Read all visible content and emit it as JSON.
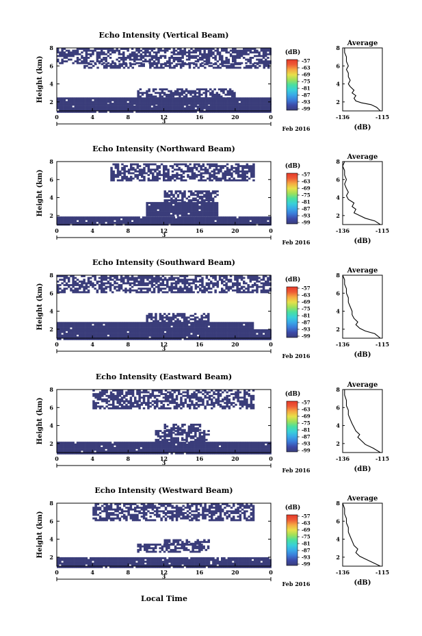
{
  "colors": {
    "echo": "#3a3d7a",
    "colorbar": [
      "#3a3d7a",
      "#3c4aa8",
      "#3b7bd8",
      "#39a9e8",
      "#39d0d8",
      "#49dfa0",
      "#9fe05a",
      "#e8e04a",
      "#f5a842",
      "#ee5a36",
      "#e43a2a"
    ]
  },
  "date_label": "Feb 2016",
  "xlabel": "Local Time",
  "chart_data": [
    {
      "type": "heatmap",
      "title": "Echo Intensity (Vertical Beam)",
      "ylabel": "Height (km)",
      "x_ticks": [
        "0",
        "4",
        "8",
        "12",
        "16",
        "20",
        "0"
      ],
      "date_tick": "3",
      "y_ticks": [
        "2",
        "4",
        "6",
        "8"
      ],
      "xlim": [
        0,
        24
      ],
      "ylim": [
        1,
        8
      ],
      "colorbar": {
        "unit": "(dB)",
        "ticks": [
          "-57",
          "-63",
          "-69",
          "-75",
          "-81",
          "-87",
          "-93",
          "-99"
        ]
      },
      "layers": [
        [
          0,
          24,
          1,
          1.8
        ],
        [
          0,
          24,
          1.8,
          2.5
        ],
        [
          9,
          20,
          2.5,
          3.5
        ],
        [
          0,
          24,
          6.3,
          8
        ],
        [
          3,
          24,
          5.8,
          6.3
        ]
      ],
      "average": {
        "title": "Average",
        "xlabel": "(dB)",
        "x_ticks": [
          "-136",
          "-115"
        ],
        "y_ticks": [
          "2",
          "4",
          "6",
          "8"
        ],
        "xlim": [
          -136,
          -115
        ],
        "ylim": [
          1,
          8
        ],
        "profile": [
          [
            -116,
            1.0
          ],
          [
            -118,
            1.4
          ],
          [
            -121,
            1.7
          ],
          [
            -126,
            1.9
          ],
          [
            -129,
            2.1
          ],
          [
            -130,
            2.4
          ],
          [
            -129,
            2.7
          ],
          [
            -131,
            3.0
          ],
          [
            -130,
            3.3
          ],
          [
            -132,
            3.7
          ],
          [
            -133,
            4.0
          ],
          [
            -132,
            4.4
          ],
          [
            -133,
            4.8
          ],
          [
            -133,
            5.2
          ],
          [
            -134,
            5.6
          ],
          [
            -133,
            6.0
          ],
          [
            -134,
            6.5
          ],
          [
            -134,
            7.0
          ],
          [
            -135,
            7.5
          ],
          [
            -135,
            8.0
          ]
        ]
      }
    },
    {
      "type": "heatmap",
      "title": "Echo Intensity (Northward Beam)",
      "ylabel": "Height (km)",
      "x_ticks": [
        "0",
        "4",
        "8",
        "12",
        "16",
        "20",
        "0"
      ],
      "date_tick": "3",
      "y_ticks": [
        "2",
        "4",
        "6",
        "8"
      ],
      "xlim": [
        0,
        24
      ],
      "ylim": [
        1,
        8
      ],
      "colorbar": {
        "unit": "(dB)",
        "ticks": [
          "-57",
          "-63",
          "-69",
          "-75",
          "-81",
          "-87",
          "-93",
          "-99"
        ]
      },
      "layers": [
        [
          0,
          24,
          1,
          1.9
        ],
        [
          10,
          18,
          2,
          3.5
        ],
        [
          12,
          18,
          3.5,
          4.8
        ],
        [
          6,
          22,
          6,
          7.8
        ]
      ],
      "average": {
        "title": "Average",
        "xlabel": "(dB)",
        "x_ticks": [
          "-136",
          "-115"
        ],
        "y_ticks": [
          "2",
          "4",
          "6",
          "8"
        ],
        "xlim": [
          -136,
          -115
        ],
        "ylim": [
          1,
          8
        ],
        "profile": [
          [
            -116,
            1.0
          ],
          [
            -119,
            1.4
          ],
          [
            -124,
            1.7
          ],
          [
            -127,
            2.0
          ],
          [
            -130,
            2.3
          ],
          [
            -129,
            2.7
          ],
          [
            -131,
            3.0
          ],
          [
            -130,
            3.4
          ],
          [
            -133,
            3.8
          ],
          [
            -134,
            4.2
          ],
          [
            -133,
            4.6
          ],
          [
            -134,
            5.0
          ],
          [
            -135,
            5.5
          ],
          [
            -134,
            6.0
          ],
          [
            -135,
            6.5
          ],
          [
            -135,
            7.0
          ],
          [
            -136,
            7.5
          ],
          [
            -135,
            8.0
          ]
        ]
      }
    },
    {
      "type": "heatmap",
      "title": "Echo Intensity (Southward Beam)",
      "ylabel": "Height (km)",
      "x_ticks": [
        "0",
        "4",
        "8",
        "12",
        "16",
        "20",
        "0"
      ],
      "date_tick": "3",
      "y_ticks": [
        "2",
        "4",
        "6",
        "8"
      ],
      "xlim": [
        0,
        24
      ],
      "ylim": [
        1,
        8
      ],
      "colorbar": {
        "unit": "(dB)",
        "ticks": [
          "-57",
          "-63",
          "-69",
          "-75",
          "-81",
          "-87",
          "-93",
          "-99"
        ]
      },
      "layers": [
        [
          0,
          24,
          1,
          2.0
        ],
        [
          0,
          22,
          2.0,
          2.8
        ],
        [
          10,
          17,
          2.8,
          3.8
        ],
        [
          0,
          24,
          6.2,
          8
        ]
      ],
      "average": {
        "title": "Average",
        "xlabel": "(dB)",
        "x_ticks": [
          "-136",
          "-115"
        ],
        "y_ticks": [
          "2",
          "4",
          "6",
          "8"
        ],
        "xlim": [
          -136,
          -115
        ],
        "ylim": [
          1,
          8
        ],
        "profile": [
          [
            -116,
            1.0
          ],
          [
            -119,
            1.5
          ],
          [
            -124,
            1.8
          ],
          [
            -127,
            2.1
          ],
          [
            -129,
            2.5
          ],
          [
            -128,
            2.8
          ],
          [
            -130,
            3.2
          ],
          [
            -131,
            3.6
          ],
          [
            -131,
            4.0
          ],
          [
            -132,
            4.5
          ],
          [
            -133,
            5.0
          ],
          [
            -133,
            5.5
          ],
          [
            -134,
            6.0
          ],
          [
            -134,
            6.5
          ],
          [
            -135,
            7.0
          ],
          [
            -135,
            7.5
          ],
          [
            -136,
            8.0
          ]
        ]
      }
    },
    {
      "type": "heatmap",
      "title": "Echo Intensity (Eastward Beam)",
      "ylabel": "Height (km)",
      "x_ticks": [
        "0",
        "4",
        "8",
        "12",
        "16",
        "20",
        "0"
      ],
      "date_tick": "3",
      "y_ticks": [
        "2",
        "4",
        "6",
        "8"
      ],
      "xlim": [
        0,
        24
      ],
      "ylim": [
        1,
        8
      ],
      "colorbar": {
        "unit": "(dB)",
        "ticks": [
          "-57",
          "-63",
          "-69",
          "-75",
          "-81",
          "-87",
          "-93",
          "-99"
        ]
      },
      "layers": [
        [
          0,
          24,
          1,
          2.2
        ],
        [
          11,
          17,
          2.2,
          3.5
        ],
        [
          12,
          16,
          3.5,
          4.2
        ],
        [
          4,
          22,
          6.0,
          8
        ]
      ],
      "average": {
        "title": "Average",
        "xlabel": "(dB)",
        "x_ticks": [
          "-136",
          "-115"
        ],
        "y_ticks": [
          "2",
          "4",
          "6",
          "8"
        ],
        "xlim": [
          -136,
          -115
        ],
        "ylim": [
          1,
          8
        ],
        "profile": [
          [
            -116,
            1.0
          ],
          [
            -120,
            1.5
          ],
          [
            -124,
            1.9
          ],
          [
            -126,
            2.3
          ],
          [
            -128,
            2.7
          ],
          [
            -127,
            3.0
          ],
          [
            -129,
            3.4
          ],
          [
            -130,
            3.8
          ],
          [
            -131,
            4.2
          ],
          [
            -132,
            4.7
          ],
          [
            -133,
            5.2
          ],
          [
            -133,
            5.7
          ],
          [
            -134,
            6.2
          ],
          [
            -134,
            6.8
          ],
          [
            -135,
            7.4
          ],
          [
            -135,
            8.0
          ]
        ]
      }
    },
    {
      "type": "heatmap",
      "title": "Echo Intensity (Westward Beam)",
      "ylabel": "Height (km)",
      "x_ticks": [
        "0",
        "4",
        "8",
        "12",
        "16",
        "20",
        "0"
      ],
      "date_tick": "3",
      "y_ticks": [
        "2",
        "4",
        "6",
        "8"
      ],
      "xlim": [
        0,
        24
      ],
      "ylim": [
        1,
        8
      ],
      "colorbar": {
        "unit": "(dB)",
        "ticks": [
          "-57",
          "-63",
          "-69",
          "-75",
          "-81",
          "-87",
          "-93",
          "-99"
        ]
      },
      "layers": [
        [
          0,
          24,
          1,
          2.0
        ],
        [
          9,
          17,
          2.6,
          3.5
        ],
        [
          12,
          17,
          3.5,
          4.0
        ],
        [
          4,
          22,
          6.2,
          8
        ]
      ],
      "average": {
        "title": "Average",
        "xlabel": "(dB)",
        "x_ticks": [
          "-136",
          "-115"
        ],
        "y_ticks": [
          "2",
          "4",
          "6",
          "8"
        ],
        "xlim": [
          -136,
          -115
        ],
        "ylim": [
          1,
          8
        ],
        "profile": [
          [
            -116,
            1.0
          ],
          [
            -120,
            1.4
          ],
          [
            -124,
            1.8
          ],
          [
            -127,
            2.1
          ],
          [
            -129,
            2.5
          ],
          [
            -128,
            2.9
          ],
          [
            -130,
            3.3
          ],
          [
            -131,
            3.8
          ],
          [
            -132,
            4.3
          ],
          [
            -133,
            4.8
          ],
          [
            -133,
            5.3
          ],
          [
            -134,
            5.8
          ],
          [
            -134,
            6.3
          ],
          [
            -135,
            6.8
          ],
          [
            -135,
            7.4
          ],
          [
            -136,
            8.0
          ]
        ]
      }
    }
  ]
}
